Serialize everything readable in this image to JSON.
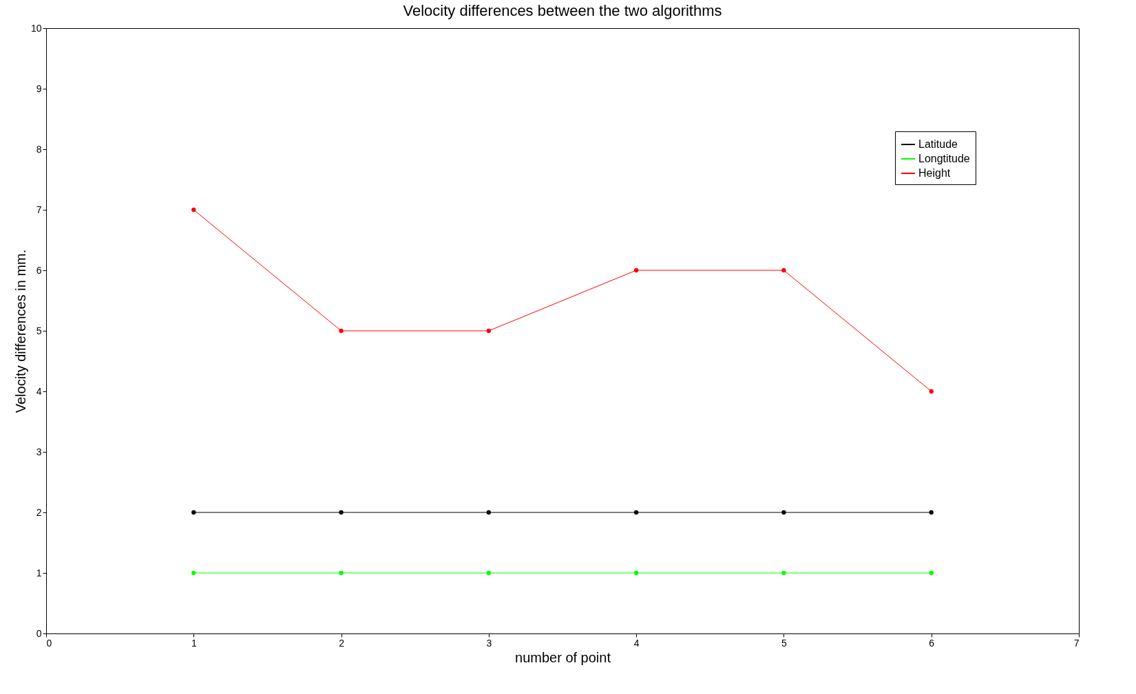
{
  "chart_data": {
    "type": "line",
    "title": "Velocity differences between the two algorithms",
    "xlabel": "number of point",
    "ylabel": "Velocity differences in mm.",
    "x": [
      1,
      2,
      3,
      4,
      5,
      6
    ],
    "series": [
      {
        "name": "Latitude",
        "color": "#000000",
        "values": [
          2,
          2,
          2,
          2,
          2,
          2
        ]
      },
      {
        "name": "Longtitude",
        "color": "#00ff00",
        "values": [
          1,
          1,
          1,
          1,
          1,
          1
        ]
      },
      {
        "name": "Height",
        "color": "#ff0000",
        "values": [
          7,
          5,
          5,
          6,
          6,
          4
        ]
      }
    ],
    "xlim": [
      0,
      7
    ],
    "xticks": [
      0,
      1,
      2,
      3,
      4,
      5,
      6,
      7
    ],
    "ylim": [
      0,
      10
    ],
    "yticks": [
      0,
      1,
      2,
      3,
      4,
      5,
      6,
      7,
      8,
      9,
      10
    ],
    "grid": false,
    "legend": "top right",
    "marker": "circle",
    "line_style": "solid"
  }
}
